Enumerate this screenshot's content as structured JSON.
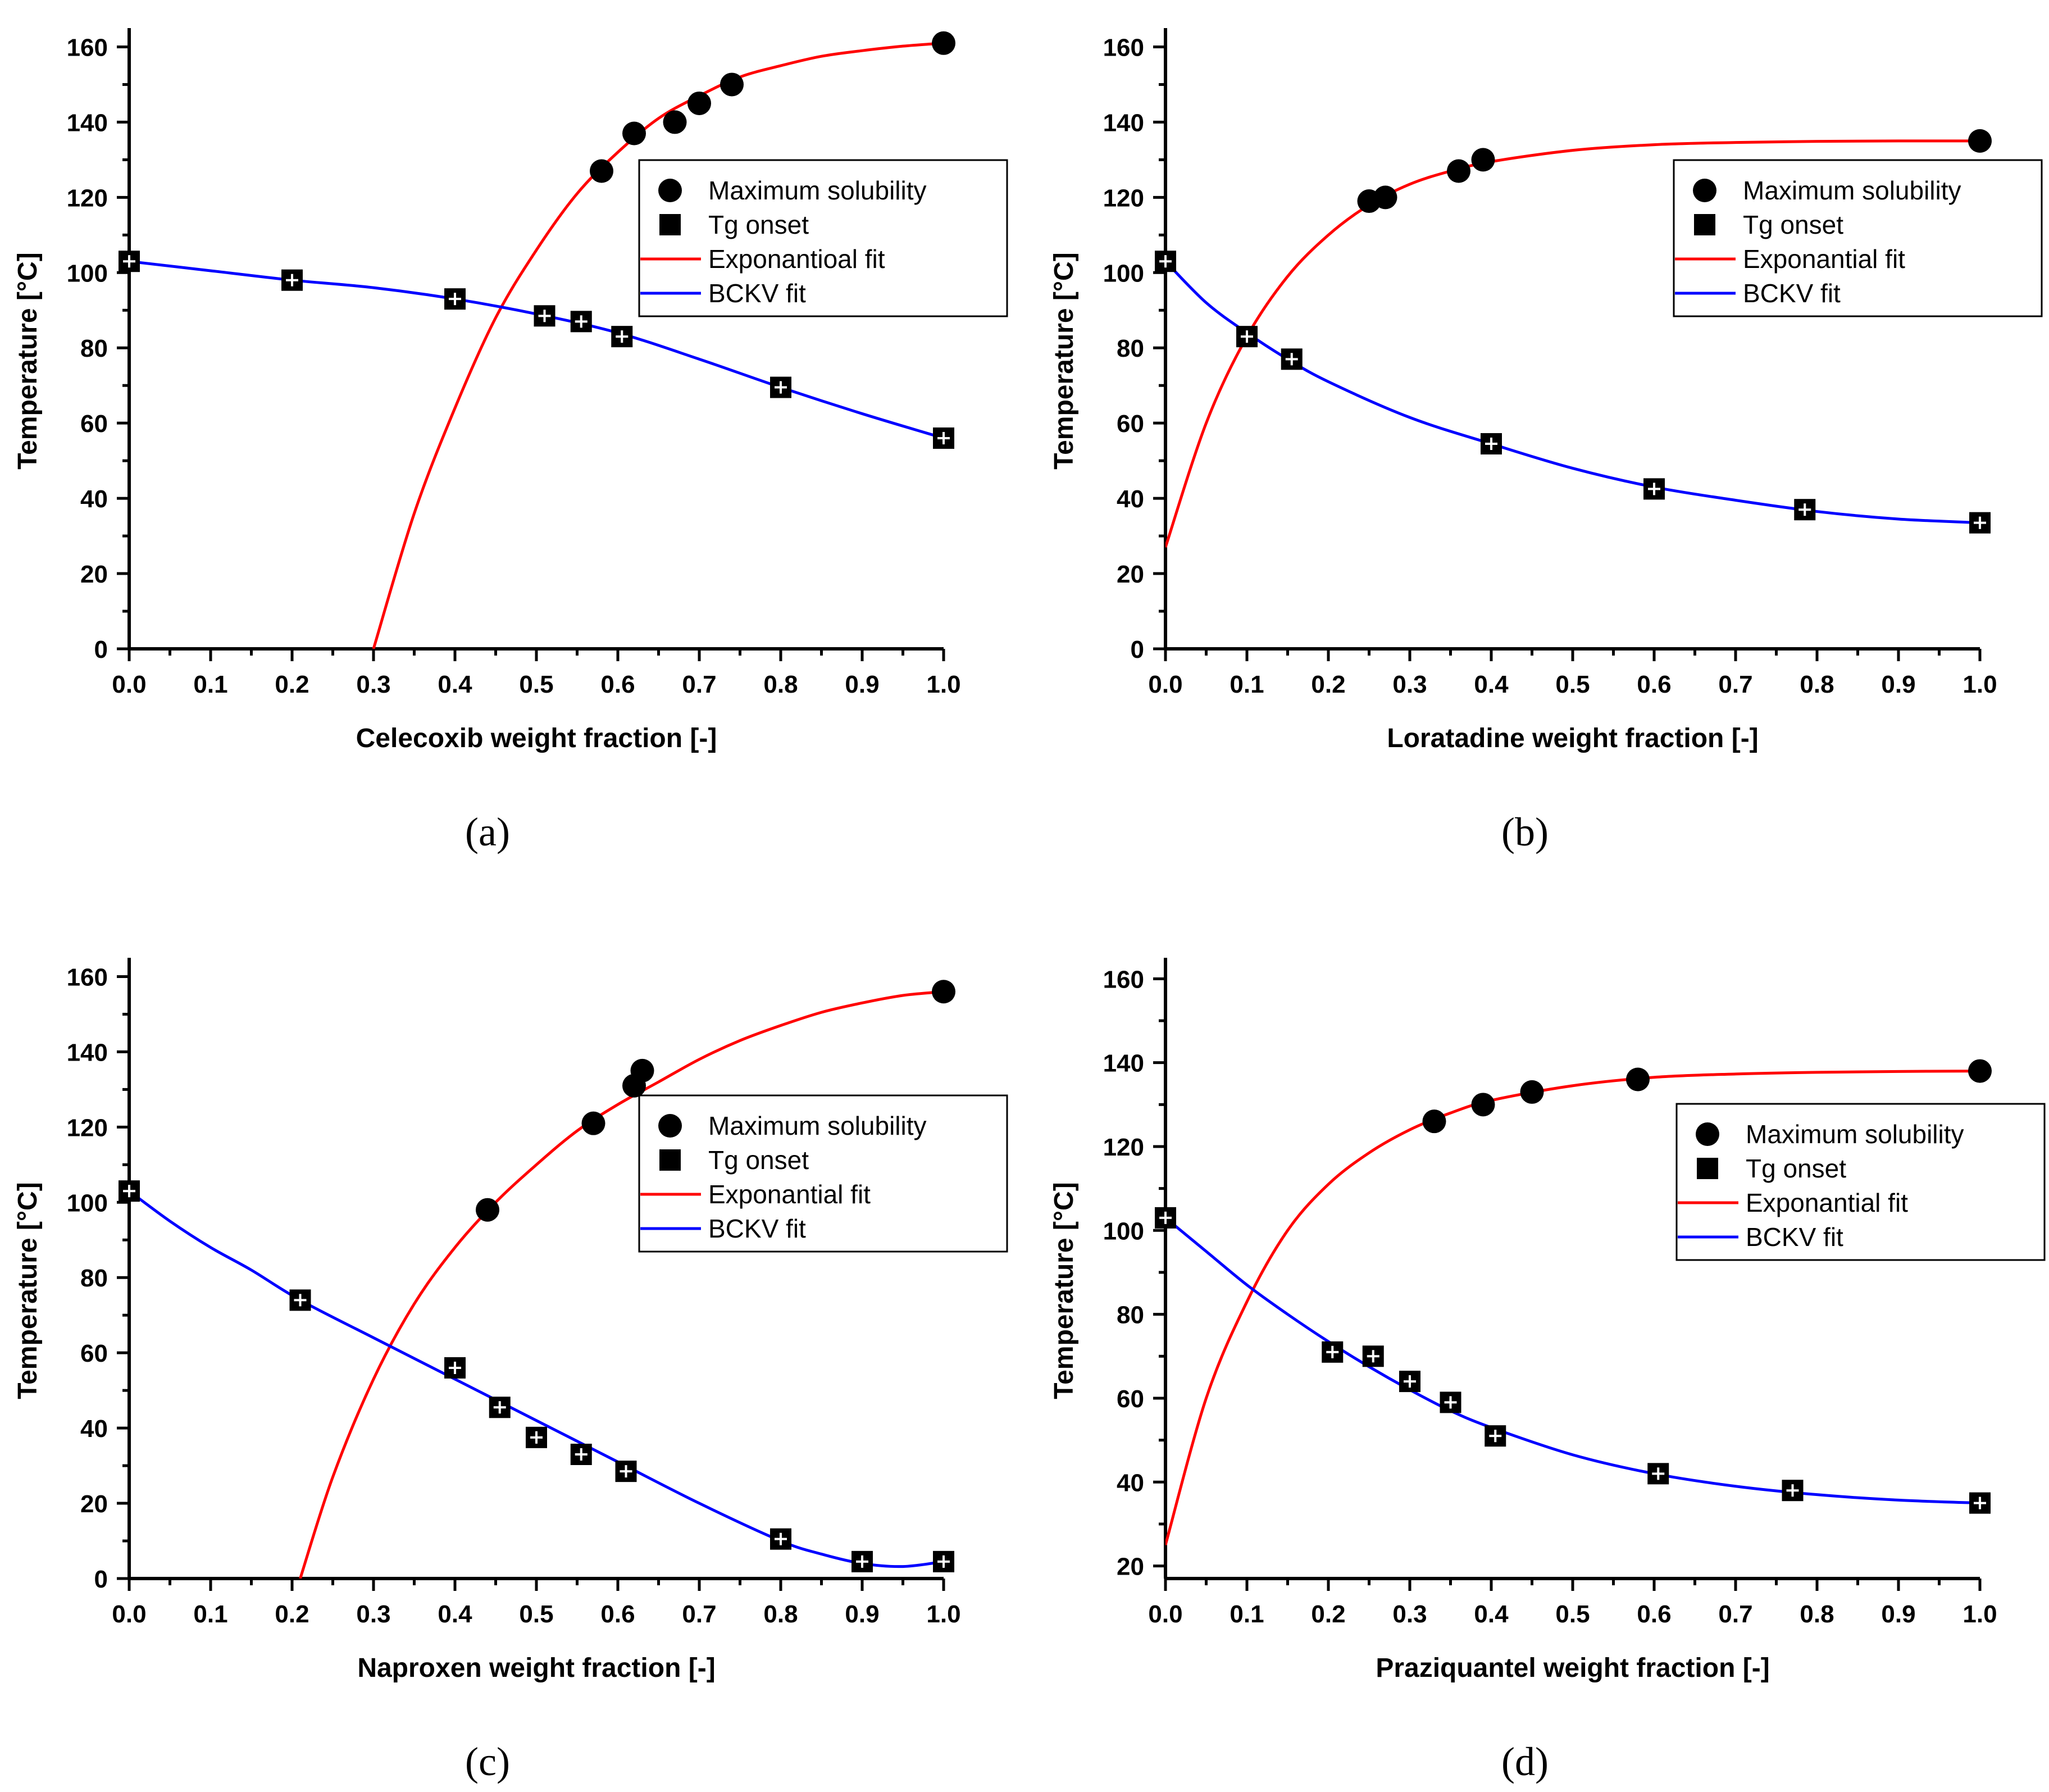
{
  "panels": [
    {
      "label": "(a)",
      "chart_data": {
        "type": "scatter",
        "xlabel": "Celecoxib weight fraction [-]",
        "ylabel": "Temperature [°C]",
        "xlim": [
          0,
          1
        ],
        "ylim": [
          0,
          165
        ],
        "xticks": [
          0.0,
          0.1,
          0.2,
          0.3,
          0.4,
          0.5,
          0.6,
          0.7,
          0.8,
          0.9,
          1.0
        ],
        "xtick_labels": [
          "0.0",
          "0.1",
          "0.2",
          "0.3",
          "0.4",
          "0.5",
          "0.6",
          "0.7",
          "0.8",
          "0.9",
          "1.0"
        ],
        "yticks": [
          0,
          20,
          40,
          60,
          80,
          100,
          120,
          140,
          160
        ],
        "ytick_labels": [
          "0",
          "20",
          "40",
          "60",
          "80",
          "100",
          "120",
          "140",
          "160"
        ],
        "legend_position": "right",
        "series": [
          {
            "name": "Maximum solubility",
            "kind": "circle",
            "x": [
              0.58,
              0.62,
              0.67,
              0.7,
              0.74,
              1.0
            ],
            "y": [
              127,
              137,
              140,
              145,
              150,
              161
            ]
          },
          {
            "name": "Tg onset",
            "kind": "square",
            "x": [
              0.0,
              0.2,
              0.4,
              0.51,
              0.555,
              0.605,
              0.8,
              1.0
            ],
            "y": [
              103,
              98,
              93,
              88.5,
              87,
              83,
              69.5,
              56
            ]
          },
          {
            "name": "Exponantioal fit",
            "kind": "line",
            "color": "#ff0000",
            "x": [
              0.3,
              0.35,
              0.4,
              0.45,
              0.5,
              0.55,
              0.6,
              0.65,
              0.7,
              0.75,
              0.8,
              0.85,
              0.9,
              0.95,
              1.0
            ],
            "y": [
              0,
              36,
              64,
              88,
              106,
              121,
              132,
              141,
              147,
              152,
              155,
              157.5,
              159,
              160.2,
              161
            ]
          },
          {
            "name": "BCKV fit",
            "kind": "line",
            "color": "#0000ff",
            "x": [
              0.0,
              0.1,
              0.2,
              0.3,
              0.4,
              0.5,
              0.6,
              0.7,
              0.8,
              0.9,
              1.0
            ],
            "y": [
              103,
              100.5,
              98,
              96,
              93,
              89,
              84,
              77,
              69.5,
              62.5,
              56
            ]
          }
        ]
      }
    },
    {
      "label": "(b)",
      "chart_data": {
        "type": "scatter",
        "xlabel": "Loratadine weight fraction [-]",
        "ylabel": "Temperature [°C]",
        "xlim": [
          0,
          1
        ],
        "ylim": [
          0,
          165
        ],
        "xticks": [
          0.0,
          0.1,
          0.2,
          0.3,
          0.4,
          0.5,
          0.6,
          0.7,
          0.8,
          0.9,
          1.0
        ],
        "xtick_labels": [
          "0.0",
          "0.1",
          "0.2",
          "0.3",
          "0.4",
          "0.5",
          "0.6",
          "0.7",
          "0.8",
          "0.9",
          "1.0"
        ],
        "yticks": [
          0,
          20,
          40,
          60,
          80,
          100,
          120,
          140,
          160
        ],
        "ytick_labels": [
          "0",
          "20",
          "40",
          "60",
          "80",
          "100",
          "120",
          "140",
          "160"
        ],
        "legend_position": "right",
        "series": [
          {
            "name": "Maximum solubility",
            "kind": "circle",
            "x": [
              0.25,
              0.27,
              0.36,
              0.39,
              1.0
            ],
            "y": [
              119,
              120,
              127,
              130,
              135
            ]
          },
          {
            "name": "Tg onset",
            "kind": "square",
            "x": [
              0.0,
              0.1,
              0.155,
              0.4,
              0.6,
              0.785,
              1.0
            ],
            "y": [
              103,
              83,
              77,
              54.5,
              42.5,
              37,
              33.5
            ]
          },
          {
            "name": "Exponantial fit",
            "kind": "line",
            "color": "#ff0000",
            "x": [
              0.0,
              0.05,
              0.1,
              0.15,
              0.2,
              0.25,
              0.3,
              0.35,
              0.4,
              0.5,
              0.6,
              0.7,
              0.8,
              0.9,
              1.0
            ],
            "y": [
              27,
              60,
              83,
              99,
              110,
              118,
              123.5,
              127,
              129.5,
              132.5,
              134,
              134.6,
              134.9,
              135,
              135
            ]
          },
          {
            "name": "BCKV fit",
            "kind": "line",
            "color": "#0000ff",
            "x": [
              0.0,
              0.05,
              0.1,
              0.15,
              0.2,
              0.3,
              0.4,
              0.5,
              0.6,
              0.7,
              0.8,
              0.9,
              1.0
            ],
            "y": [
              103,
              92,
              84,
              77,
              71,
              61.5,
              54.5,
              48,
              43,
              39.5,
              36.5,
              34.5,
              33.5
            ]
          }
        ]
      }
    },
    {
      "label": "(c)",
      "chart_data": {
        "type": "scatter",
        "xlabel": "Naproxen weight fraction [-]",
        "ylabel": "Temperature [°C]",
        "xlim": [
          0,
          1
        ],
        "ylim": [
          0,
          165
        ],
        "xticks": [
          0.0,
          0.1,
          0.2,
          0.3,
          0.4,
          0.5,
          0.6,
          0.7,
          0.8,
          0.9,
          1.0
        ],
        "xtick_labels": [
          "0.0",
          "0.1",
          "0.2",
          "0.3",
          "0.4",
          "0.5",
          "0.6",
          "0.7",
          "0.8",
          "0.9",
          "1.0"
        ],
        "yticks": [
          0,
          20,
          40,
          60,
          80,
          100,
          120,
          140,
          160
        ],
        "ytick_labels": [
          "0",
          "20",
          "40",
          "60",
          "80",
          "100",
          "120",
          "140",
          "160"
        ],
        "legend_position": "right",
        "series": [
          {
            "name": "Maximum solubility",
            "kind": "circle",
            "x": [
              0.44,
              0.57,
              0.62,
              0.63,
              1.0
            ],
            "y": [
              98,
              121,
              131,
              135,
              156
            ]
          },
          {
            "name": "Tg onset",
            "kind": "square",
            "x": [
              0.0,
              0.21,
              0.4,
              0.455,
              0.5,
              0.555,
              0.61,
              0.8,
              0.9,
              1.0
            ],
            "y": [
              103,
              74,
              56,
              45.5,
              37.5,
              33,
              28.5,
              10.5,
              4.5,
              4.5
            ]
          },
          {
            "name": "Exponantial fit",
            "kind": "line",
            "color": "#ff0000",
            "x": [
              0.21,
              0.25,
              0.3,
              0.35,
              0.4,
              0.45,
              0.5,
              0.55,
              0.6,
              0.65,
              0.7,
              0.75,
              0.8,
              0.85,
              0.9,
              0.95,
              1.0
            ],
            "y": [
              0,
              27,
              53,
              73,
              88,
              100,
              110,
              119,
              126,
              132,
              138,
              143,
              147,
              150.5,
              153,
              155,
              156
            ]
          },
          {
            "name": "BCKV fit",
            "kind": "line",
            "color": "#0000ff",
            "x": [
              0.0,
              0.05,
              0.1,
              0.15,
              0.21,
              0.3,
              0.4,
              0.5,
              0.6,
              0.7,
              0.8,
              0.85,
              0.9,
              0.95,
              1.0
            ],
            "y": [
              103,
              95,
              88,
              82,
              74,
              64,
              53,
              42,
              31,
              20,
              10,
              6.5,
              4,
              3.2,
              4.5
            ]
          }
        ]
      }
    },
    {
      "label": "(d)",
      "chart_data": {
        "type": "scatter",
        "xlabel": "Praziquantel weight fraction [-]",
        "ylabel": "Temperature [°C]",
        "xlim": [
          0,
          1
        ],
        "ylim": [
          17,
          165
        ],
        "xticks": [
          0.0,
          0.1,
          0.2,
          0.3,
          0.4,
          0.5,
          0.6,
          0.7,
          0.8,
          0.9,
          1.0
        ],
        "xtick_labels": [
          "0.0",
          "0.1",
          "0.2",
          "0.3",
          "0.4",
          "0.5",
          "0.6",
          "0.7",
          "0.8",
          "0.9",
          "1.0"
        ],
        "yticks": [
          20,
          40,
          60,
          80,
          100,
          120,
          140,
          160
        ],
        "ytick_labels": [
          "20",
          "40",
          "60",
          "80",
          "100",
          "120",
          "140",
          "160"
        ],
        "legend_position": "right",
        "series": [
          {
            "name": "Maximum solubility",
            "kind": "circle",
            "x": [
              0.33,
              0.39,
              0.45,
              0.58,
              1.0
            ],
            "y": [
              126,
              130,
              133,
              136,
              138
            ]
          },
          {
            "name": "Tg onset",
            "kind": "square",
            "x": [
              0.0,
              0.205,
              0.255,
              0.3,
              0.35,
              0.405,
              0.605,
              0.77,
              1.0
            ],
            "y": [
              103,
              71,
              70,
              64,
              59,
              51,
              42,
              38,
              35
            ]
          },
          {
            "name": "Exponantial fit",
            "kind": "line",
            "color": "#ff0000",
            "x": [
              0.0,
              0.05,
              0.1,
              0.15,
              0.2,
              0.25,
              0.3,
              0.35,
              0.4,
              0.5,
              0.6,
              0.7,
              0.8,
              0.9,
              1.0
            ],
            "y": [
              25,
              60,
              83,
              100,
              111,
              118.5,
              124,
              128,
              131,
              134.5,
              136.5,
              137.3,
              137.7,
              137.9,
              138
            ]
          },
          {
            "name": "BCKV fit",
            "kind": "line",
            "color": "#0000ff",
            "x": [
              0.0,
              0.05,
              0.1,
              0.15,
              0.2,
              0.25,
              0.3,
              0.35,
              0.4,
              0.5,
              0.6,
              0.7,
              0.8,
              0.9,
              1.0
            ],
            "y": [
              103,
              95,
              87,
              80,
              73.5,
              67.5,
              62,
              57,
              53,
              46.5,
              42,
              39,
              37,
              35.7,
              35
            ]
          }
        ]
      }
    }
  ]
}
